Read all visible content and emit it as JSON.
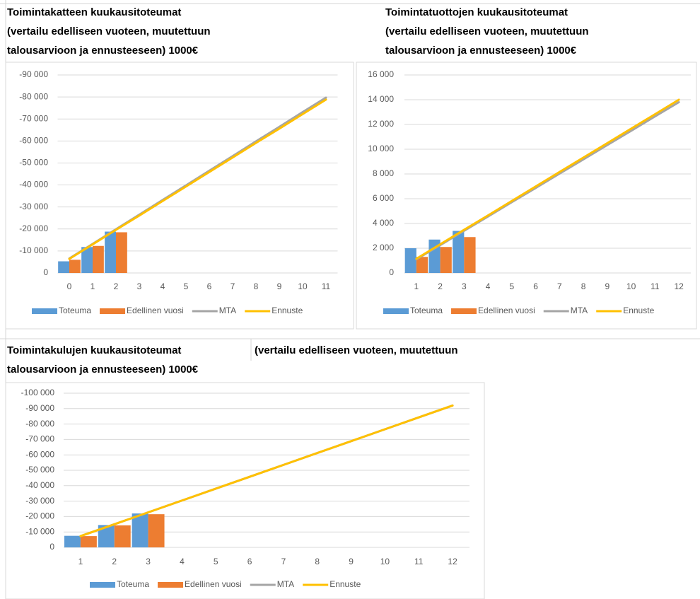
{
  "chart_data": [
    {
      "type": "bar",
      "title": [
        "Toimintakatteen kuukausitoteumat",
        "(vertailu edelliseen vuoteen, muutettuun",
        "talousarvioon ja ennusteeseen) 1000€"
      ],
      "categories": [
        0,
        1,
        2,
        3,
        4,
        5,
        6,
        7,
        8,
        9,
        10,
        11
      ],
      "series": [
        {
          "name": "Toteuma",
          "type": "bar",
          "color": "#5b9bd5",
          "values": [
            -5300,
            -11800,
            -18800,
            null,
            null,
            null,
            null,
            null,
            null,
            null,
            null,
            null
          ]
        },
        {
          "name": "Edellinen vuosi",
          "type": "bar",
          "color": "#ed7d31",
          "values": [
            -6000,
            -12300,
            -18500,
            null,
            null,
            null,
            null,
            null,
            null,
            null,
            null,
            null
          ]
        },
        {
          "name": "MTA",
          "type": "line",
          "color": "#a5a5a5",
          "values": [
            -6600,
            -13200,
            -19900,
            -26500,
            -33200,
            -39800,
            -46500,
            -53100,
            -59800,
            -66400,
            -73100,
            -79700
          ]
        },
        {
          "name": "Ennuste",
          "type": "line",
          "color": "#ffc000",
          "values": [
            -6400,
            -13000,
            -19600,
            -26100,
            -32700,
            -39300,
            -45900,
            -52500,
            -59100,
            -65600,
            -72200,
            -78800
          ]
        }
      ],
      "ylim": [
        0,
        -90000
      ],
      "yticks": [
        0,
        {
          "value": -10000,
          "label": "-10 000"
        },
        {
          "value": -20000,
          "label": "-20 000"
        },
        {
          "value": -30000,
          "label": "-30 000"
        },
        {
          "value": -40000,
          "label": "-40 000"
        },
        {
          "value": -50000,
          "label": "-50 000"
        },
        {
          "value": -60000,
          "label": "-60 000"
        },
        {
          "value": -70000,
          "label": "-70 000"
        },
        {
          "value": -80000,
          "label": "-80 000"
        },
        {
          "value": -90000,
          "label": "-90 000"
        }
      ],
      "grid": true,
      "legend": "bottom"
    },
    {
      "type": "bar",
      "title": [
        "Toimintatuottojen kuukausitoteumat",
        "(vertailu edelliseen vuoteen, muutettuun",
        "talousarvioon ja ennusteeseen) 1000€"
      ],
      "categories": [
        1,
        2,
        3,
        4,
        5,
        6,
        7,
        8,
        9,
        10,
        11,
        12
      ],
      "series": [
        {
          "name": "Toteuma",
          "type": "bar",
          "color": "#5b9bd5",
          "values": [
            2000,
            2700,
            3400,
            null,
            null,
            null,
            null,
            null,
            null,
            null,
            null,
            null
          ]
        },
        {
          "name": "Edellinen vuosi",
          "type": "bar",
          "color": "#ed7d31",
          "values": [
            1300,
            2100,
            2900,
            null,
            null,
            null,
            null,
            null,
            null,
            null,
            null,
            null
          ]
        },
        {
          "name": "MTA",
          "type": "line",
          "color": "#a5a5a5",
          "values": [
            1100,
            2250,
            3410,
            4560,
            5720,
            6870,
            8030,
            9180,
            10340,
            11490,
            12650,
            13800
          ]
        },
        {
          "name": "Ennuste",
          "type": "line",
          "color": "#ffc000",
          "values": [
            1150,
            2320,
            3490,
            4650,
            5820,
            6990,
            8160,
            9330,
            10490,
            11660,
            12830,
            14000
          ]
        }
      ],
      "ylim": [
        0,
        16000
      ],
      "yticks": [
        0,
        {
          "value": 2000,
          "label": "2 000"
        },
        {
          "value": 4000,
          "label": "4 000"
        },
        {
          "value": 6000,
          "label": "6 000"
        },
        {
          "value": 8000,
          "label": "8 000"
        },
        {
          "value": 10000,
          "label": "10 000"
        },
        {
          "value": 12000,
          "label": "12 000"
        },
        {
          "value": 14000,
          "label": "14 000"
        },
        {
          "value": 16000,
          "label": "16 000"
        }
      ],
      "grid": true,
      "legend": "bottom"
    },
    {
      "type": "bar",
      "title": [
        "Toimintakulujen kuukausitoteumat",
        "(vertailu edelliseen vuoteen,  muutettuun",
        "talousarvioon ja ennusteeseen) 1000€"
      ],
      "categories": [
        1,
        2,
        3,
        4,
        5,
        6,
        7,
        8,
        9,
        10,
        11,
        12
      ],
      "series": [
        {
          "name": "Toteuma",
          "type": "bar",
          "color": "#5b9bd5",
          "values": [
            -7500,
            -14500,
            -22000,
            null,
            null,
            null,
            null,
            null,
            null,
            null,
            null,
            null
          ]
        },
        {
          "name": "Edellinen vuosi",
          "type": "bar",
          "color": "#ed7d31",
          "values": [
            -7300,
            -14300,
            -21500,
            null,
            null,
            null,
            null,
            null,
            null,
            null,
            null,
            null
          ]
        },
        {
          "name": "MTA",
          "type": "line",
          "color": "#a5a5a5",
          "values": [
            -7300,
            -15000,
            -22700,
            -30400,
            -38100,
            -45800,
            -53500,
            -61200,
            -68900,
            -76600,
            -84300,
            -92000
          ]
        },
        {
          "name": "Ennuste",
          "type": "line",
          "color": "#ffc000",
          "values": [
            -7300,
            -15000,
            -22700,
            -30400,
            -38100,
            -45800,
            -53500,
            -61200,
            -68900,
            -76600,
            -84300,
            -92000
          ]
        }
      ],
      "ylim": [
        0,
        -100000
      ],
      "yticks": [
        0,
        {
          "value": -10000,
          "label": "-10 000"
        },
        {
          "value": -20000,
          "label": "-20 000"
        },
        {
          "value": -30000,
          "label": "-30 000"
        },
        {
          "value": -40000,
          "label": "-40 000"
        },
        {
          "value": -50000,
          "label": "-50 000"
        },
        {
          "value": -60000,
          "label": "-60 000"
        },
        {
          "value": -70000,
          "label": "-70 000"
        },
        {
          "value": -80000,
          "label": "-80 000"
        },
        {
          "value": -90000,
          "label": "-90 000"
        },
        {
          "value": -100000,
          "label": "-100 000"
        }
      ],
      "grid": true,
      "legend": "bottom"
    }
  ]
}
